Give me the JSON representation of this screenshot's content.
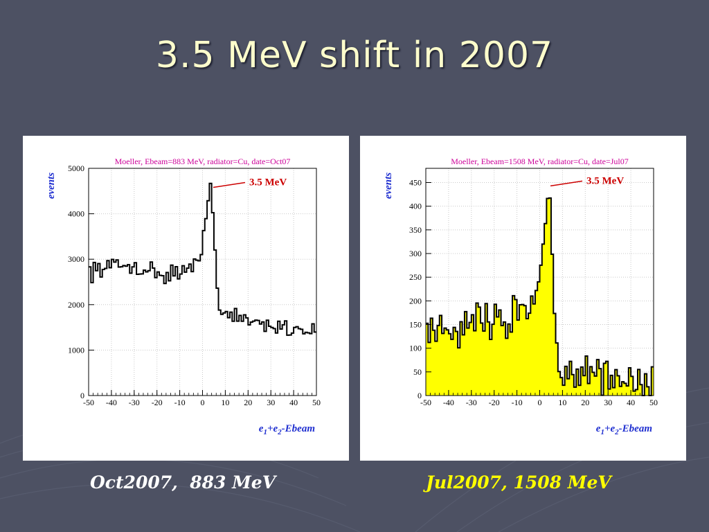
{
  "slide": {
    "title": "3.5 MeV shift in 2007",
    "caption_left": "Oct2007,  883 MeV",
    "caption_right": "Jul2007, 1508 MeV"
  },
  "colors": {
    "background": "#4d5163",
    "title": "#ffffcc",
    "plot_title": "#cc0099",
    "axis_label": "#1f2fd0",
    "annotation": "#cc0000",
    "fill_right": "#ffff00",
    "caption_left": "#ffffff",
    "caption_right": "#ffff00"
  },
  "chart_data": [
    {
      "type": "histogram",
      "title": "Moeller, Ebeam=883 MeV, radiator=Cu, date=Oct07",
      "xlabel": "e1+e2-Ebeam",
      "ylabel": "events",
      "xlim": [
        -50,
        50
      ],
      "ylim": [
        0,
        5000
      ],
      "xticks": [
        -50,
        -40,
        -30,
        -20,
        -10,
        0,
        10,
        20,
        30,
        40,
        50
      ],
      "yticks": [
        0,
        1000,
        2000,
        3000,
        4000,
        5000
      ],
      "grid": true,
      "filled": false,
      "annotation": {
        "text": "3.5 MeV",
        "x": 3.5,
        "y": 4550
      },
      "profile": [
        [
          -50,
          2750
        ],
        [
          -40,
          2850
        ],
        [
          -30,
          2850
        ],
        [
          -20,
          2700
        ],
        [
          -15,
          2650
        ],
        [
          -10,
          2750
        ],
        [
          -5,
          2800
        ],
        [
          -1,
          2900
        ],
        [
          0,
          3150
        ],
        [
          1,
          3900
        ],
        [
          2,
          4300
        ],
        [
          3,
          4450
        ],
        [
          3.5,
          4550
        ],
        [
          4,
          4450
        ],
        [
          5,
          4000
        ],
        [
          6,
          2800
        ],
        [
          7,
          1900
        ],
        [
          9,
          1780
        ],
        [
          15,
          1700
        ],
        [
          20,
          1650
        ],
        [
          30,
          1550
        ],
        [
          40,
          1480
        ],
        [
          50,
          1450
        ]
      ],
      "noise": 200
    },
    {
      "type": "histogram",
      "title": "Moeller, Ebeam=1508 MeV, radiator=Cu, date=Jul07",
      "xlabel": "e1+e2-Ebeam",
      "ylabel": "events",
      "xlim": [
        -50,
        50
      ],
      "ylim": [
        0,
        480
      ],
      "xticks": [
        -50,
        -40,
        -30,
        -20,
        -10,
        0,
        10,
        20,
        30,
        40,
        50
      ],
      "yticks": [
        0,
        50,
        100,
        150,
        200,
        250,
        300,
        350,
        400,
        450
      ],
      "grid": true,
      "filled": true,
      "annotation": {
        "text": "3.5 MeV",
        "x": 3.5,
        "y": 440
      },
      "profile": [
        [
          -50,
          150
        ],
        [
          -40,
          145
        ],
        [
          -30,
          150
        ],
        [
          -20,
          165
        ],
        [
          -10,
          175
        ],
        [
          -5,
          185
        ],
        [
          -2,
          215
        ],
        [
          0,
          255
        ],
        [
          1,
          290
        ],
        [
          2,
          340
        ],
        [
          3,
          410
        ],
        [
          3.5,
          435
        ],
        [
          4,
          420
        ],
        [
          5,
          350
        ],
        [
          6,
          220
        ],
        [
          7,
          90
        ],
        [
          9,
          60
        ],
        [
          20,
          40
        ],
        [
          30,
          45
        ],
        [
          40,
          45
        ],
        [
          50,
          40
        ]
      ],
      "noise": 45
    }
  ]
}
